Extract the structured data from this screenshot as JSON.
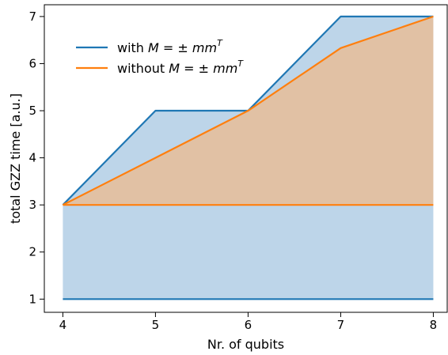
{
  "chart_data": {
    "type": "area",
    "x": [
      4,
      5,
      6,
      7,
      8
    ],
    "xlabel": "Nr. of qubits",
    "ylabel": "total GZZ time [a.u.]",
    "xlim": [
      3.8,
      8.15
    ],
    "ylim": [
      0.72,
      7.25
    ],
    "xticks": [
      4,
      5,
      6,
      7,
      8
    ],
    "yticks": [
      1,
      2,
      3,
      4,
      5,
      6,
      7
    ],
    "grid": false,
    "legend_position": "top-left",
    "series": [
      {
        "name_prefix": "with ",
        "name_math": "M = ± mm",
        "name_sup": "T",
        "color": "#1f77b4",
        "fill_color": "#9ec1de",
        "upper": [
          3,
          5,
          5,
          7,
          7
        ],
        "lower": [
          1,
          1,
          1,
          1,
          1
        ]
      },
      {
        "name_prefix": "without ",
        "name_math": "M = ± mm",
        "name_sup": "T",
        "color": "#ff7f0e",
        "fill_color": "#ffb06b",
        "upper": [
          3,
          4,
          5,
          6.33,
          7
        ],
        "lower": [
          3,
          3,
          3,
          3,
          3
        ]
      }
    ]
  }
}
